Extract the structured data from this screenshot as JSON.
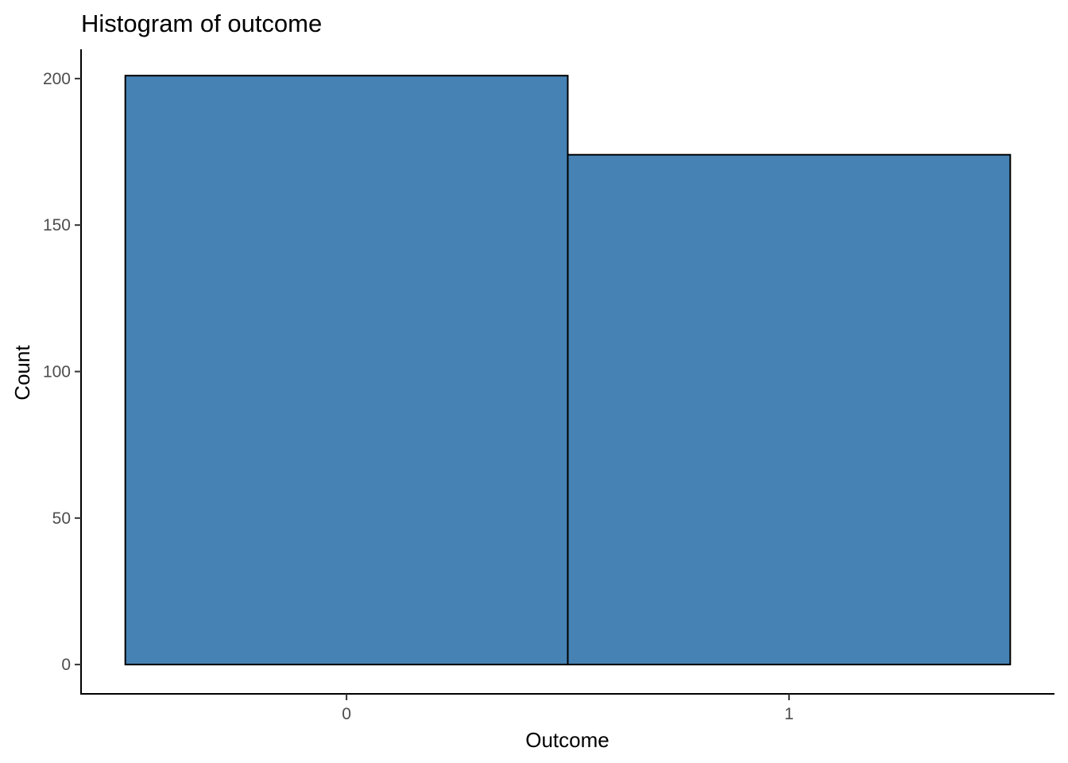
{
  "chart_data": {
    "type": "bar",
    "title": "Histogram of outcome",
    "xlabel": "Outcome",
    "ylabel": "Count",
    "categories": [
      "0",
      "1"
    ],
    "values": [
      201,
      174
    ],
    "ylim": [
      -10,
      210
    ],
    "y_ticks": [
      0,
      50,
      100,
      150,
      200
    ],
    "y_tick_labels": [
      "0",
      "50",
      "100",
      "150",
      "200"
    ],
    "x_tick_labels": [
      "0",
      "1"
    ],
    "bar_fill": "#4682b4",
    "bar_stroke": "#000000",
    "grid": false,
    "legend": "none"
  }
}
